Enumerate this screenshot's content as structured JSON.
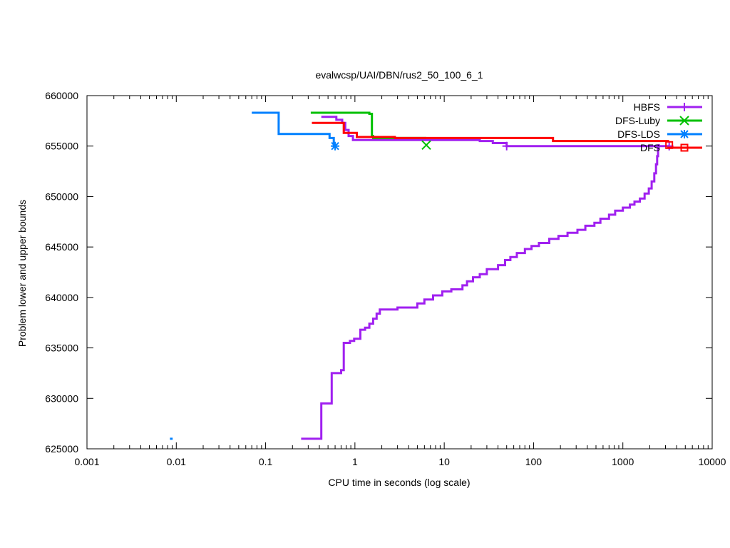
{
  "chart_data": {
    "type": "line",
    "title": "evalwcsp/UAI/DBN/rus2_50_100_6_1",
    "xlabel": "CPU time in seconds (log scale)",
    "ylabel": "Problem lower and upper bounds",
    "xscale": "log",
    "xlim": [
      0.001,
      10000
    ],
    "ylim": [
      625000,
      660000
    ],
    "xticks": [
      {
        "v": 0.001,
        "label": "0.001"
      },
      {
        "v": 0.01,
        "label": "0.01"
      },
      {
        "v": 0.1,
        "label": "0.1"
      },
      {
        "v": 1,
        "label": "1"
      },
      {
        "v": 10,
        "label": "10"
      },
      {
        "v": 100,
        "label": "100"
      },
      {
        "v": 1000,
        "label": "1000"
      },
      {
        "v": 10000,
        "label": "10000"
      }
    ],
    "yticks": [
      {
        "v": 625000,
        "label": "625000"
      },
      {
        "v": 630000,
        "label": "630000"
      },
      {
        "v": 635000,
        "label": "635000"
      },
      {
        "v": 640000,
        "label": "640000"
      },
      {
        "v": 645000,
        "label": "645000"
      },
      {
        "v": 650000,
        "label": "650000"
      },
      {
        "v": 655000,
        "label": "655000"
      },
      {
        "v": 660000,
        "label": "660000"
      }
    ],
    "grid": false,
    "legend_position": "top-right",
    "series": [
      {
        "name": "HBFS",
        "color": "#a020f0",
        "marker": "plus",
        "upper": [
          [
            0.42,
            657900
          ],
          [
            0.62,
            657600
          ],
          [
            0.72,
            657300
          ],
          [
            0.78,
            656600
          ],
          [
            0.85,
            656000
          ],
          [
            0.95,
            655600
          ],
          [
            25,
            655500
          ],
          [
            35,
            655300
          ],
          [
            50,
            655000
          ],
          [
            3300,
            655000
          ]
        ],
        "lower": [
          [
            0.25,
            626000
          ],
          [
            0.42,
            629500
          ],
          [
            0.55,
            632500
          ],
          [
            0.7,
            632800
          ],
          [
            0.75,
            635500
          ],
          [
            0.88,
            635700
          ],
          [
            0.98,
            635900
          ],
          [
            1.15,
            636800
          ],
          [
            1.3,
            637000
          ],
          [
            1.45,
            637400
          ],
          [
            1.6,
            637900
          ],
          [
            1.75,
            638400
          ],
          [
            1.9,
            638800
          ],
          [
            3.0,
            639000
          ],
          [
            5.0,
            639400
          ],
          [
            6.0,
            639800
          ],
          [
            7.5,
            640200
          ],
          [
            9.5,
            640600
          ],
          [
            12,
            640800
          ],
          [
            16,
            641200
          ],
          [
            18,
            641600
          ],
          [
            21,
            642000
          ],
          [
            25,
            642300
          ],
          [
            30,
            642800
          ],
          [
            40,
            643200
          ],
          [
            48,
            643700
          ],
          [
            55,
            644000
          ],
          [
            65,
            644400
          ],
          [
            80,
            644800
          ],
          [
            95,
            645100
          ],
          [
            115,
            645400
          ],
          [
            150,
            645800
          ],
          [
            190,
            646100
          ],
          [
            240,
            646400
          ],
          [
            310,
            646700
          ],
          [
            380,
            647100
          ],
          [
            480,
            647400
          ],
          [
            560,
            647800
          ],
          [
            700,
            648200
          ],
          [
            820,
            648600
          ],
          [
            1000,
            648900
          ],
          [
            1200,
            649200
          ],
          [
            1350,
            649500
          ],
          [
            1550,
            649800
          ],
          [
            1750,
            650300
          ],
          [
            1950,
            650800
          ],
          [
            2100,
            651500
          ],
          [
            2250,
            652300
          ],
          [
            2350,
            653200
          ],
          [
            2420,
            654000
          ],
          [
            2480,
            654800
          ],
          [
            2520,
            655200
          ]
        ],
        "markers": [
          [
            50,
            655000
          ],
          [
            3300,
            655000
          ]
        ]
      },
      {
        "name": "DFS-Luby",
        "color": "#00c000",
        "marker": "cross",
        "upper": [
          [
            0.32,
            658300
          ],
          [
            1.45,
            658200
          ],
          [
            1.55,
            656000
          ],
          [
            1.6,
            655800
          ],
          [
            6.3,
            655800
          ]
        ],
        "lower": [],
        "markers": [
          [
            6.3,
            655100
          ]
        ]
      },
      {
        "name": "DFS-LDS",
        "color": "#0080ff",
        "marker": "asterisk",
        "upper": [
          [
            0.07,
            658300
          ],
          [
            0.14,
            656200
          ],
          [
            0.52,
            655800
          ],
          [
            0.58,
            655000
          ],
          [
            0.6,
            655000
          ]
        ],
        "lower": [
          [
            0.0085,
            626000
          ],
          [
            0.0091,
            626000
          ]
        ],
        "markers": [
          [
            0.6,
            655000
          ]
        ]
      },
      {
        "name": "DFS",
        "color": "#ff0000",
        "marker": "square",
        "upper": [
          [
            0.33,
            657300
          ],
          [
            0.75,
            656300
          ],
          [
            1.05,
            655900
          ],
          [
            2.8,
            655800
          ],
          [
            165,
            655500
          ],
          [
            3300,
            655500
          ]
        ],
        "lower": [],
        "markers": [
          [
            3300,
            655100
          ]
        ]
      }
    ]
  }
}
